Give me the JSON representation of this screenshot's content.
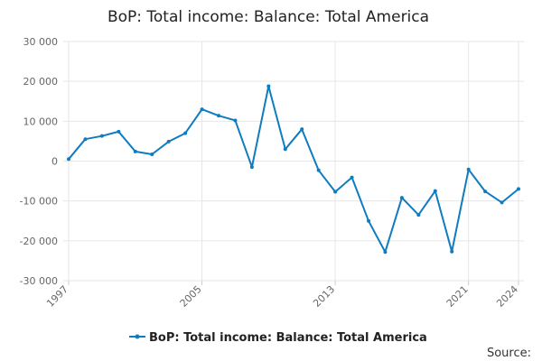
{
  "chart_data": {
    "type": "line",
    "title": "BoP: Total income: Balance: Total America",
    "xlabel": "",
    "ylabel": "",
    "x": [
      1997,
      1998,
      1999,
      2000,
      2001,
      2002,
      2003,
      2004,
      2005,
      2006,
      2007,
      2008,
      2009,
      2010,
      2011,
      2012,
      2013,
      2014,
      2015,
      2016,
      2017,
      2018,
      2019,
      2020,
      2021,
      2022,
      2023,
      2024
    ],
    "series": [
      {
        "name": "BoP: Total income: Balance: Total America",
        "color": "#0f7cc0",
        "values": [
          500,
          5500,
          6300,
          7400,
          2400,
          1700,
          4900,
          7000,
          13000,
          11400,
          10200,
          -1500,
          18800,
          3000,
          8000,
          -2300,
          -7700,
          -4100,
          -15000,
          -22800,
          -9200,
          -13500,
          -7500,
          -22700,
          -2100,
          -7600,
          -10400,
          -7000
        ]
      }
    ],
    "ylim": [
      -30000,
      30000
    ],
    "yticks": [
      30000,
      20000,
      10000,
      0,
      -10000,
      -20000,
      -30000
    ],
    "ytick_labels": [
      "30 000",
      "20 000",
      "10 000",
      "0",
      "-10 000",
      "-20 000",
      "-30 000"
    ],
    "xticks": [
      1997,
      2005,
      2013,
      2021,
      2024
    ],
    "xtick_labels": [
      "1997",
      "2005",
      "2013",
      "2021",
      "2024"
    ],
    "grid": true,
    "legend": "bottom",
    "source_label": "Source:"
  }
}
